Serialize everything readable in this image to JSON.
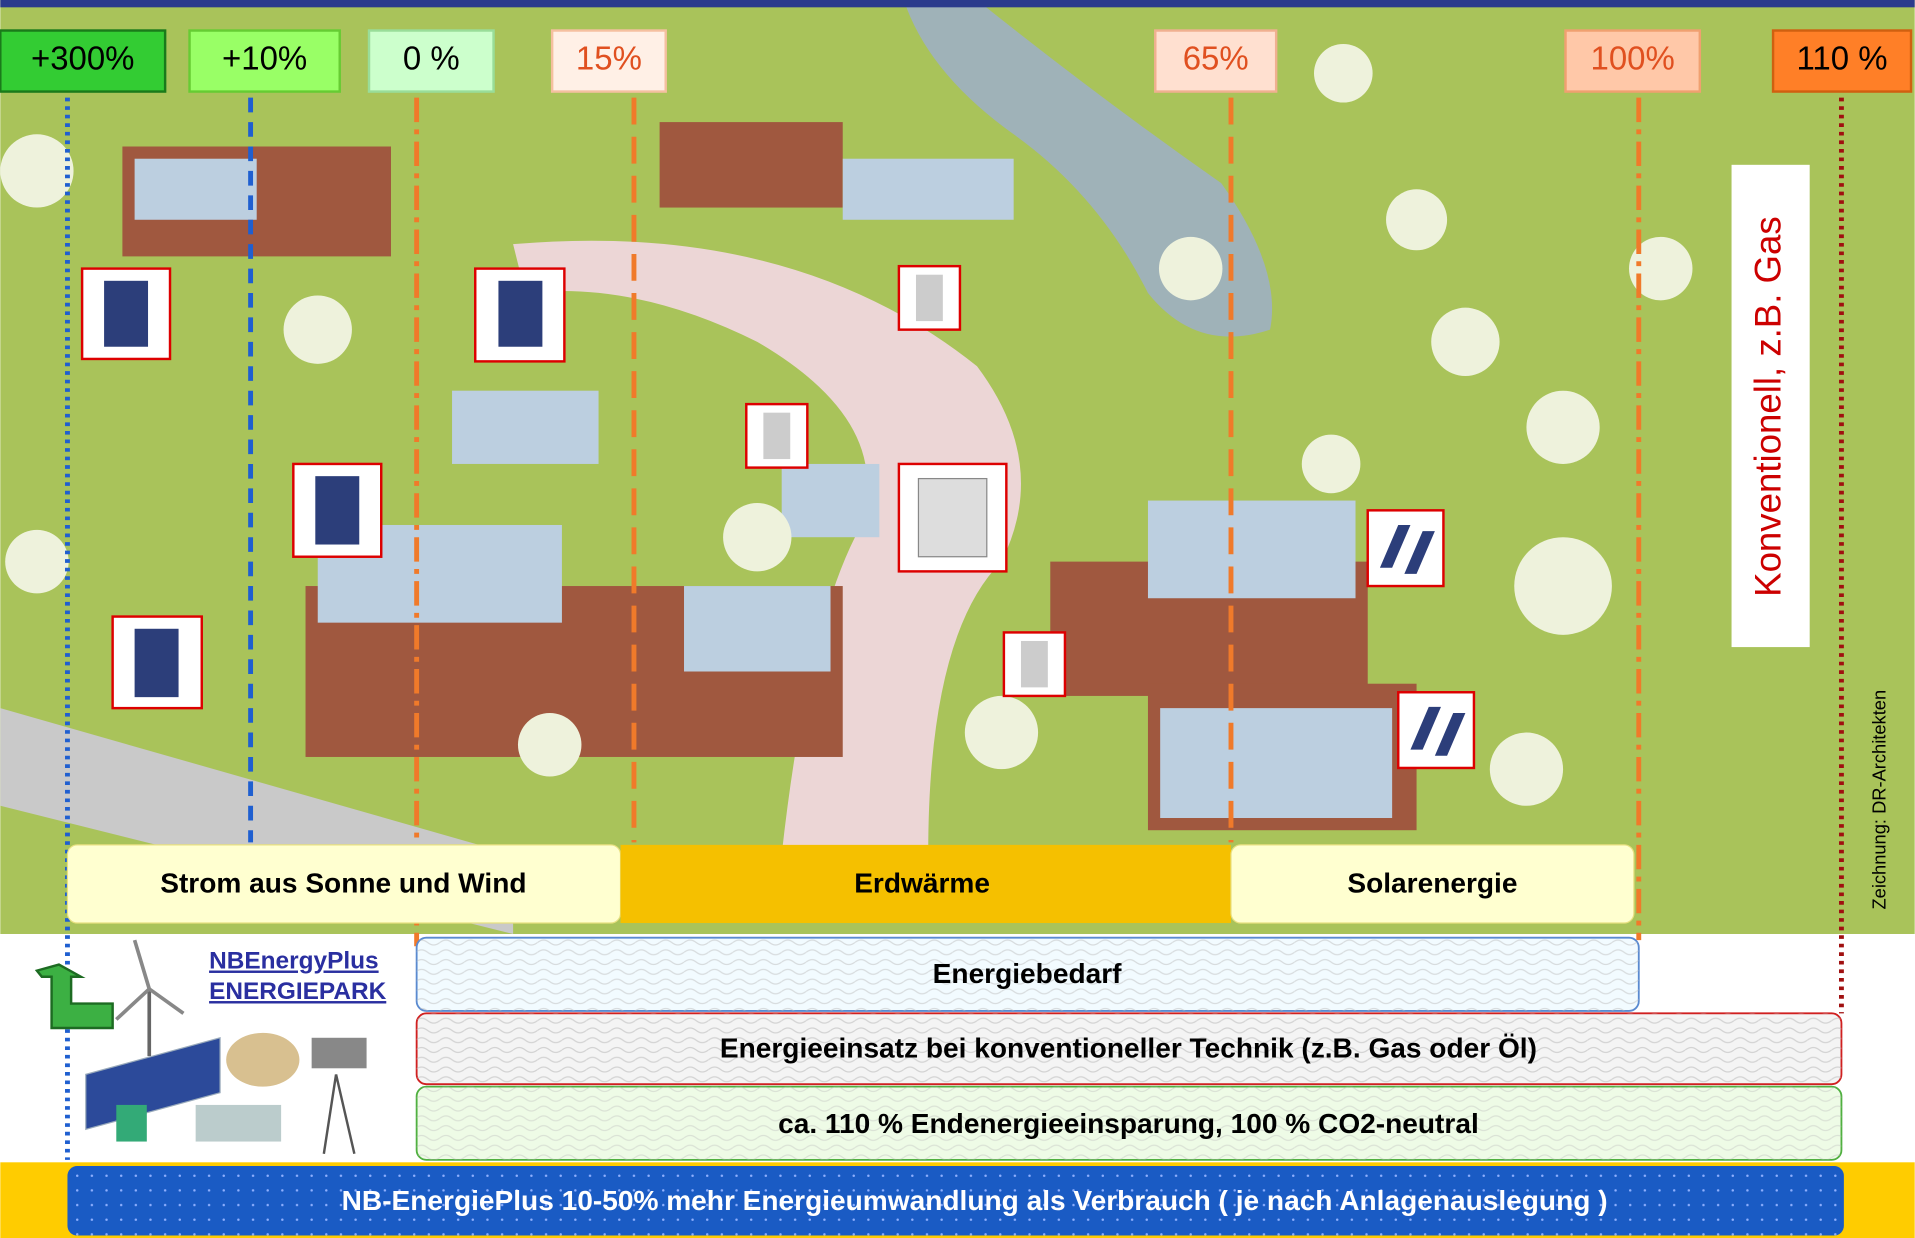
{
  "markers": [
    "+300%",
    "+10%",
    "0 %",
    "15%",
    "65%",
    "100%",
    "110 %"
  ],
  "sources": [
    "Strom aus Sonne und Wind",
    "Erdwärme",
    "Solarenergie"
  ],
  "bars": [
    "Energiebedarf",
    "Energieeinsatz bei konventioneller Technik (z.B. Gas oder Öl)",
    "ca. 110 % Endenergieeinsparung, 100 % CO2-neutral",
    "NB-EnergiePlus 10-50% mehr Energieumwandlung als Verbrauch ( je nach Anlagenauslegung )"
  ],
  "vertical_label": "Konventionell, z.B. Gas",
  "credit": "Zeichnung: DR-Architekten",
  "park": {
    "line1": "NBEnergyPlus",
    "line2": "ENERGIEPARK"
  }
}
